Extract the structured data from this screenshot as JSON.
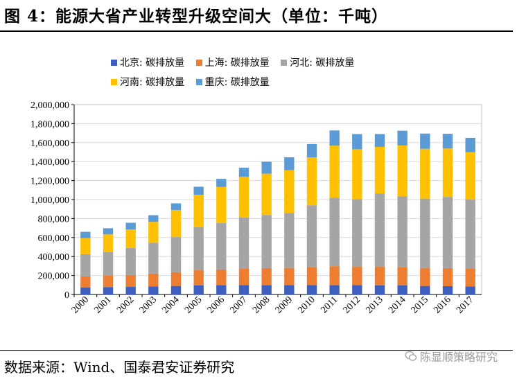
{
  "header": {
    "title": "图 4：能源大省产业转型升级空间大（单位：千吨）"
  },
  "footer": {
    "source": "数据来源：Wind、国泰君安证券研究",
    "watermark": "陈显顺策略研究"
  },
  "colors": {
    "beijing": "#3f5fbf",
    "shanghai": "#ed7d31",
    "hebei": "#a5a5a5",
    "henan": "#ffc000",
    "chongqing": "#5b9bd5"
  },
  "chart_data": {
    "type": "bar",
    "stacked": true,
    "title": "",
    "xlabel": "",
    "ylabel": "",
    "ylim": [
      0,
      2000000
    ],
    "yticks": [
      "0",
      "200,000",
      "400,000",
      "600,000",
      "800,000",
      "1,000,000",
      "1,200,000",
      "1,400,000",
      "1,600,000",
      "1,800,000",
      "2,000,000"
    ],
    "legend": [
      "北京: 碳排放量",
      "上海: 碳排放量",
      "河北: 碳排放量",
      "河南: 碳排放量",
      "重庆: 碳排放量"
    ],
    "categories": [
      "2000",
      "2001",
      "2002",
      "2003",
      "2004",
      "2005",
      "2006",
      "2007",
      "2008",
      "2009",
      "2010",
      "2011",
      "2012",
      "2013",
      "2014",
      "2015",
      "2016",
      "2017"
    ],
    "series": [
      {
        "name": "北京: 碳排放量",
        "values": [
          75000,
          78000,
          80000,
          85000,
          90000,
          95000,
          98000,
          100000,
          98000,
          100000,
          100000,
          98000,
          100000,
          95000,
          95000,
          90000,
          88000,
          85000
        ]
      },
      {
        "name": "上海: 碳排放量",
        "values": [
          115000,
          120000,
          125000,
          135000,
          145000,
          160000,
          165000,
          175000,
          180000,
          180000,
          190000,
          200000,
          195000,
          200000,
          190000,
          190000,
          190000,
          190000
        ]
      },
      {
        "name": "河北: 碳排放量",
        "values": [
          235000,
          250000,
          285000,
          325000,
          370000,
          455000,
          490000,
          535000,
          560000,
          580000,
          650000,
          720000,
          710000,
          770000,
          750000,
          730000,
          750000,
          725000
        ]
      },
      {
        "name": "河南: 碳排放量",
        "values": [
          170000,
          185000,
          195000,
          220000,
          285000,
          340000,
          380000,
          430000,
          435000,
          450000,
          505000,
          550000,
          525000,
          490000,
          535000,
          525000,
          510000,
          500000
        ]
      },
      {
        "name": "重庆: 碳排放量",
        "values": [
          65000,
          65000,
          70000,
          70000,
          70000,
          85000,
          85000,
          95000,
          125000,
          135000,
          140000,
          160000,
          160000,
          135000,
          155000,
          160000,
          155000,
          150000
        ]
      }
    ]
  }
}
